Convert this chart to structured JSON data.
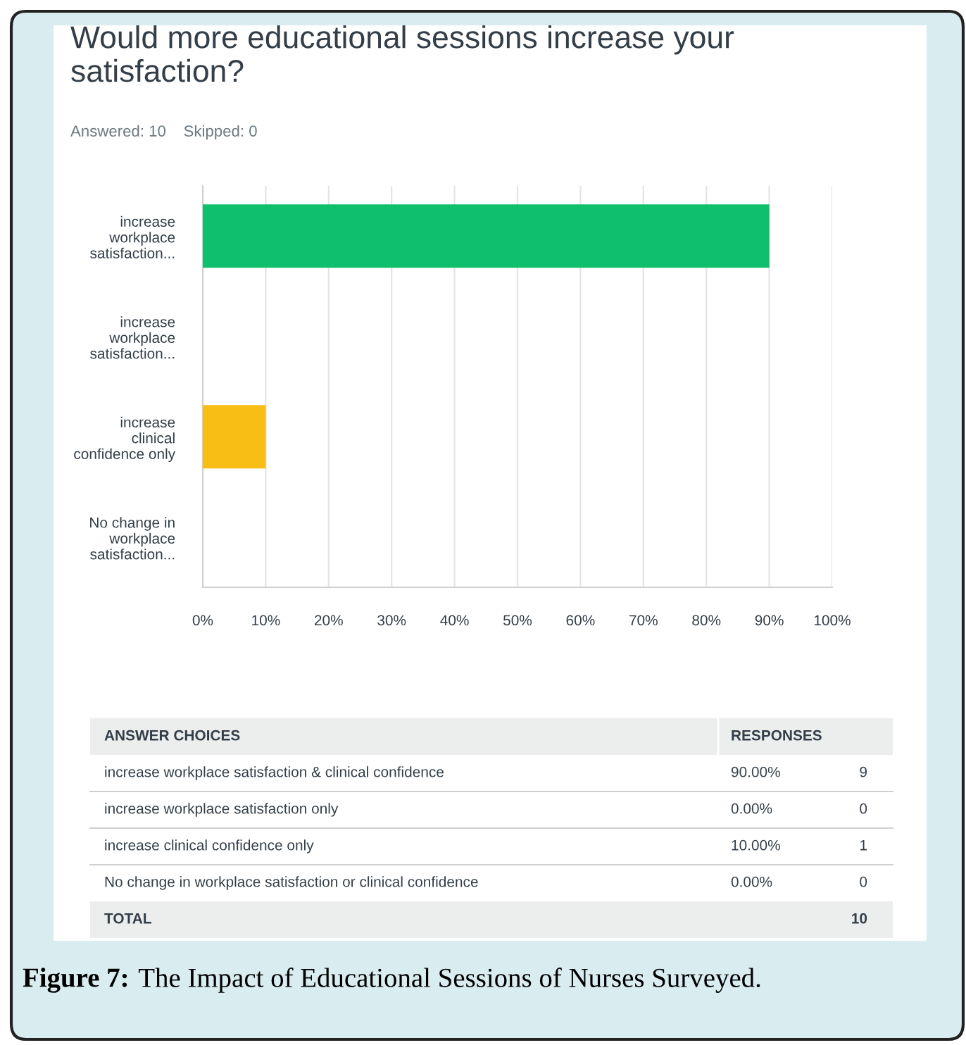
{
  "chart_data": {
    "type": "bar",
    "orientation": "horizontal",
    "title": "Would more educational sessions increase your\nsatisfaction?",
    "subtitle": "Answered: 10    Skipped: 0",
    "categories": [
      "increase\nworkplace\nsatisfaction...",
      "increase\nworkplace\nsatisfaction...",
      "increase\nclinical\nconfidence only",
      "No change in\nworkplace\nsatisfaction..."
    ],
    "values": [
      90,
      0,
      10,
      0
    ],
    "colors": [
      "#0fbf6e",
      "#0fbf6e",
      "#f8be15",
      "#f8be15"
    ],
    "xlim": [
      0,
      100
    ],
    "xticks": [
      {
        "value": 0,
        "label": "0%"
      },
      {
        "value": 10,
        "label": "10%"
      },
      {
        "value": 20,
        "label": "20%"
      },
      {
        "value": 30,
        "label": "30%"
      },
      {
        "value": 40,
        "label": "40%"
      },
      {
        "value": 50,
        "label": "50%"
      },
      {
        "value": 60,
        "label": "60%"
      },
      {
        "value": 70,
        "label": "70%"
      },
      {
        "value": 80,
        "label": "80%"
      },
      {
        "value": 90,
        "label": "90%"
      },
      {
        "value": 100,
        "label": "100%"
      }
    ],
    "grid": "x",
    "legend": false,
    "annotations": [
      "ANSWER CHOICES",
      "RESPONSES",
      "increase workplace satisfaction & clinical confidence",
      "increase workplace satisfaction only",
      "increase clinical confidence only",
      "No change in workplace satisfaction or clinical confidence",
      "90.00%",
      "0.00%",
      "10.00%",
      "0.00%",
      "9",
      "0",
      "1",
      "0",
      "TOTAL",
      "10",
      "Figure 7:",
      "The Impact of Educational Sessions of Nurses Surveyed."
    ]
  }
}
